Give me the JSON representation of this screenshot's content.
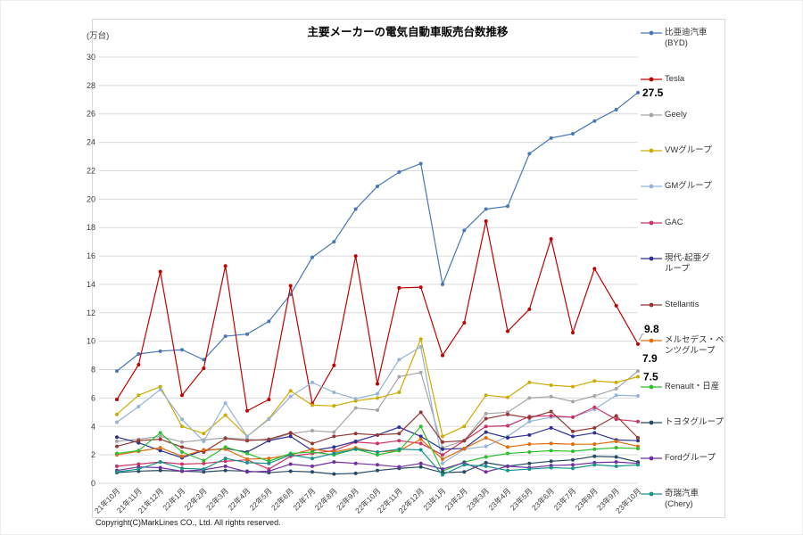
{
  "chart": {
    "copyright": "Copyright(C)MarkLines CO., Ltd. All rights reserved.",
    "grid_color": "#d9d9d9",
    "tick_text_color": "#404040",
    "annotation_color": "#000000"
  },
  "chart_data": {
    "type": "line",
    "title": "主要メーカーの電気自動車販売台数推移",
    "ylabel": "(万台)",
    "xlabel": "",
    "ylim": [
      0,
      30
    ],
    "y_tick_step": 2,
    "grid": true,
    "legend_position": "right",
    "categories": [
      "21年10月",
      "21年11月",
      "21年12月",
      "22年1月",
      "22年2月",
      "22年3月",
      "22年4月",
      "22年5月",
      "22年6月",
      "22年7月",
      "22年8月",
      "22年9月",
      "22年10月",
      "22年11月",
      "22年12月",
      "23年1月",
      "23年2月",
      "23年3月",
      "23年4月",
      "23年5月",
      "23年6月",
      "23年7月",
      "23年8月",
      "23年9月",
      "23年10月"
    ],
    "series": [
      {
        "slug": "byd",
        "name": "比亜迪汽車(BYD)",
        "legend_lines": [
          "比亜迪汽車",
          "(BYD)"
        ],
        "color": "#4877b8",
        "values": [
          7.9,
          9.1,
          9.3,
          9.4,
          8.7,
          10.35,
          10.5,
          11.4,
          13.3,
          15.9,
          17.0,
          19.3,
          20.9,
          21.9,
          22.5,
          14.0,
          17.8,
          19.3,
          19.5,
          23.2,
          24.3,
          24.6,
          25.5,
          26.3,
          27.5
        ]
      },
      {
        "slug": "tesla",
        "name": "Tesla",
        "legend_lines": [
          "Tesla"
        ],
        "color": "#c00000",
        "values": [
          5.9,
          8.35,
          14.9,
          6.2,
          8.1,
          15.3,
          5.1,
          5.9,
          13.9,
          5.6,
          8.3,
          16.0,
          7.0,
          13.75,
          13.8,
          9.0,
          11.3,
          18.45,
          10.7,
          12.25,
          17.2,
          10.6,
          15.1,
          12.5,
          9.8
        ]
      },
      {
        "slug": "geely",
        "name": "Geely",
        "legend_lines": [
          "Geely"
        ],
        "color": "#a6a6a6",
        "values": [
          2.95,
          3.1,
          3.3,
          2.9,
          3.05,
          3.2,
          3.1,
          3.0,
          3.5,
          3.7,
          3.6,
          5.3,
          5.15,
          7.5,
          7.8,
          2.5,
          3.0,
          4.9,
          5.0,
          6.0,
          6.1,
          5.75,
          6.15,
          6.65,
          7.9
        ]
      },
      {
        "slug": "vw-group",
        "name": "VWグループ",
        "legend_lines": [
          "VWグループ"
        ],
        "color": "#ccac00",
        "values": [
          4.85,
          6.2,
          6.8,
          4.0,
          3.5,
          4.8,
          3.3,
          4.55,
          6.5,
          5.5,
          5.45,
          5.8,
          6.0,
          6.4,
          10.15,
          3.3,
          4.0,
          6.2,
          6.05,
          7.1,
          6.9,
          6.8,
          7.2,
          7.1,
          7.5
        ]
      },
      {
        "slug": "gm-group",
        "name": "GMグループ",
        "legend_lines": [
          "GMグループ"
        ],
        "color": "#95b3d7",
        "values": [
          4.3,
          5.4,
          6.6,
          4.5,
          2.95,
          5.65,
          3.3,
          4.5,
          6.1,
          7.1,
          6.4,
          5.95,
          6.3,
          8.7,
          9.6,
          1.4,
          2.4,
          2.6,
          3.3,
          4.35,
          4.65,
          4.65,
          5.2,
          6.2,
          6.15
        ]
      },
      {
        "slug": "gac",
        "name": "GAC",
        "legend_lines": [
          "GAC"
        ],
        "color": "#cc3366",
        "values": [
          1.2,
          1.35,
          1.5,
          1.35,
          1.4,
          1.55,
          1.65,
          1.0,
          1.9,
          2.1,
          2.3,
          2.9,
          2.8,
          3.0,
          2.8,
          2.0,
          3.0,
          4.0,
          4.05,
          4.7,
          4.75,
          4.65,
          5.35,
          4.5,
          4.35
        ]
      },
      {
        "slug": "hyundai-kia-group",
        "name": "現代-起亜グループ",
        "legend_lines": [
          "現代-起亜グ",
          "ループ"
        ],
        "color": "#2e3192",
        "values": [
          3.25,
          2.85,
          2.3,
          1.8,
          2.3,
          2.45,
          2.2,
          3.0,
          3.3,
          2.3,
          2.55,
          2.95,
          3.4,
          3.95,
          3.3,
          2.4,
          2.45,
          3.6,
          3.2,
          3.4,
          3.9,
          3.3,
          3.55,
          3.05,
          3.0
        ]
      },
      {
        "slug": "stellantis",
        "name": "Stellantis",
        "legend_lines": [
          "Stellantis"
        ],
        "color": "#953735",
        "values": [
          2.6,
          3.0,
          3.1,
          2.55,
          2.2,
          3.15,
          3.0,
          3.1,
          3.55,
          2.8,
          3.3,
          3.5,
          3.4,
          3.5,
          5.0,
          2.9,
          3.0,
          4.55,
          4.85,
          4.6,
          5.05,
          3.65,
          3.9,
          4.75,
          3.2
        ]
      },
      {
        "slug": "mercedes-benz-group",
        "name": "メルセデス・ベンツグループ",
        "legend_lines": [
          "メルセデス・ベ",
          "ンツグループ"
        ],
        "color": "#e36c0a",
        "values": [
          2.0,
          2.25,
          2.5,
          1.9,
          2.35,
          2.4,
          1.7,
          1.75,
          2.0,
          2.4,
          2.2,
          2.5,
          2.2,
          2.3,
          3.1,
          1.7,
          2.45,
          3.2,
          2.55,
          2.75,
          2.8,
          2.75,
          2.75,
          2.95,
          2.6
        ]
      },
      {
        "slug": "renault-nissan",
        "name": "Renault・日産",
        "legend_lines": [
          "Renault・日産"
        ],
        "color": "#2fbe2f",
        "values": [
          2.1,
          2.3,
          3.55,
          2.2,
          1.6,
          2.55,
          2.1,
          1.55,
          2.1,
          2.2,
          2.0,
          2.4,
          2.0,
          2.3,
          4.0,
          0.85,
          1.5,
          1.85,
          2.1,
          2.2,
          2.3,
          2.25,
          2.4,
          2.5,
          2.45
        ]
      },
      {
        "slug": "toyota-group",
        "name": "トヨタグループ",
        "legend_lines": [
          "トヨタグループ"
        ],
        "color": "#274a63",
        "values": [
          0.75,
          0.85,
          0.9,
          0.85,
          0.8,
          0.9,
          0.85,
          0.75,
          0.85,
          0.8,
          0.65,
          0.7,
          0.9,
          1.05,
          1.15,
          0.75,
          0.8,
          1.45,
          1.2,
          1.4,
          1.55,
          1.65,
          1.9,
          1.85,
          1.5
        ]
      },
      {
        "slug": "ford-group",
        "name": "Fordグループ",
        "legend_lines": [
          "Fordグループ"
        ],
        "color": "#7030a0",
        "values": [
          0.9,
          1.15,
          1.1,
          0.85,
          0.95,
          1.2,
          0.8,
          0.85,
          1.35,
          1.2,
          1.5,
          1.4,
          1.3,
          1.15,
          1.4,
          1.0,
          1.45,
          0.8,
          1.2,
          1.1,
          1.25,
          1.3,
          1.45,
          1.5,
          1.4
        ]
      },
      {
        "slug": "chery",
        "name": "奇瑞汽車(Chery)",
        "legend_lines": [
          "奇瑞汽車",
          "(Chery)"
        ],
        "color": "#17948a",
        "values": [
          0.8,
          1.0,
          1.5,
          1.05,
          1.0,
          1.75,
          1.45,
          1.4,
          2.0,
          1.75,
          2.1,
          2.4,
          2.2,
          2.4,
          2.35,
          0.6,
          1.3,
          1.2,
          0.9,
          1.0,
          1.1,
          1.05,
          1.3,
          1.2,
          1.3
        ]
      }
    ],
    "annotations": [
      {
        "series": "比亜迪汽車(BYD)",
        "text": "27.5"
      },
      {
        "series": "Tesla",
        "text": "9.8"
      },
      {
        "series": "Geely",
        "text": "7.9"
      },
      {
        "series": "VWグループ",
        "text": "7.5"
      }
    ]
  }
}
